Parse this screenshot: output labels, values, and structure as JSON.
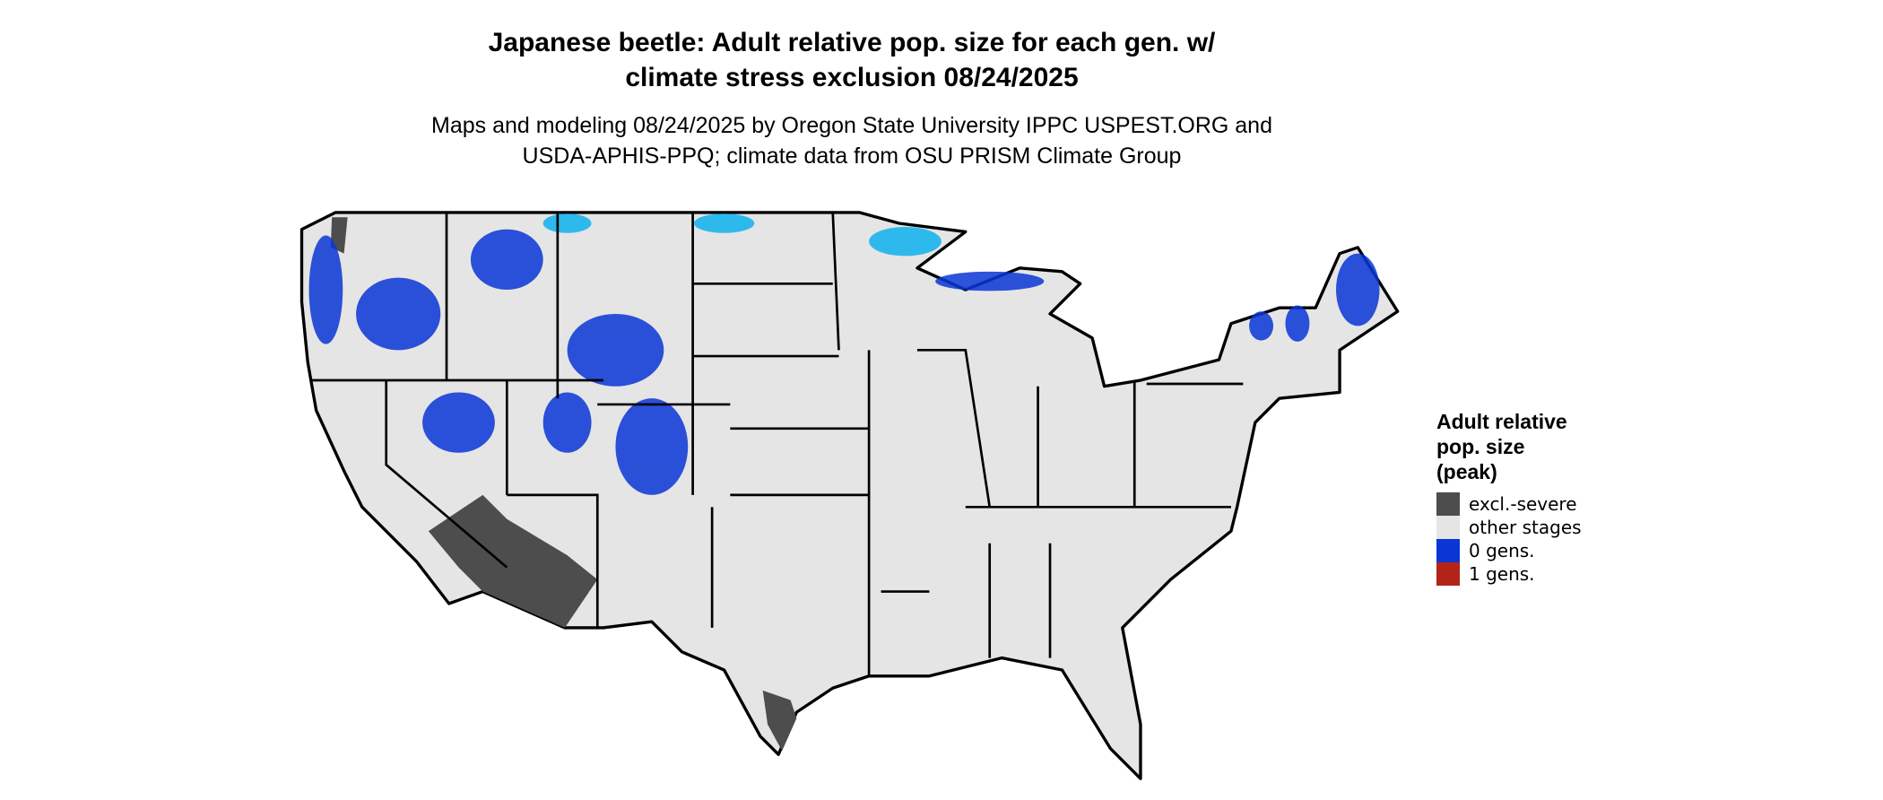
{
  "header": {
    "title": [
      "Japanese beetle: Adult relative pop. size for each gen. w/",
      "climate stress exclusion 08/24/2025"
    ],
    "subtitle": [
      "Maps and modeling 08/24/2025 by Oregon State University IPPC USPEST.ORG and",
      "USDA-APHIS-PPQ; climate data from OSU PRISM Climate Group"
    ]
  },
  "legend": {
    "title": [
      "Adult relative",
      "pop. size",
      "(peak)"
    ],
    "items": [
      {
        "label": "excl.-severe",
        "color": "#4d4d4d"
      },
      {
        "label": "other stages",
        "color": "#e5e5e5"
      },
      {
        "label": "0 gens.",
        "color": "#0a36d6"
      },
      {
        "label": "1 gens.",
        "color": "#b22418"
      }
    ]
  }
}
